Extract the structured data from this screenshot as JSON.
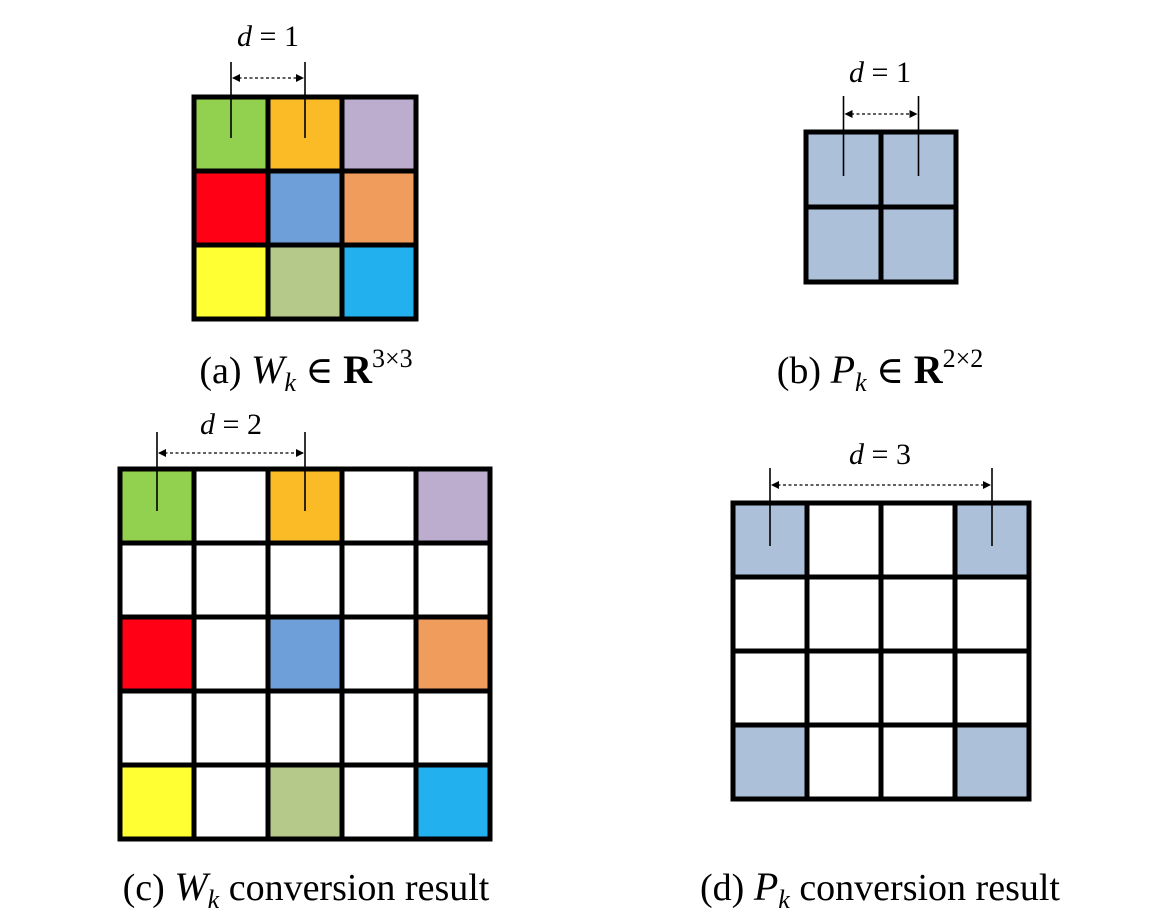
{
  "panels": [
    {
      "id": "a",
      "caption": {
        "prefix": "(a) ",
        "symbol": "W",
        "sub": "k",
        "relation": " ∈ ",
        "field": "R",
        "sup": "3×3",
        "suffix": ""
      },
      "spacing_label": {
        "var": "d",
        "eq": " = ",
        "value": "1"
      },
      "grid": {
        "rows": 3,
        "cols": 3
      },
      "cells": [
        {
          "r": 0,
          "c": 0,
          "color": "#92d050"
        },
        {
          "r": 0,
          "c": 1,
          "color": "#fbbb27"
        },
        {
          "r": 0,
          "c": 2,
          "color": "#bcaccd"
        },
        {
          "r": 1,
          "c": 0,
          "color": "#ff0015"
        },
        {
          "r": 1,
          "c": 1,
          "color": "#6f9fd8"
        },
        {
          "r": 1,
          "c": 2,
          "color": "#f09c5c"
        },
        {
          "r": 2,
          "c": 0,
          "color": "#ffff33"
        },
        {
          "r": 2,
          "c": 1,
          "color": "#b5c98b"
        },
        {
          "r": 2,
          "c": 2,
          "color": "#22b1ee"
        }
      ],
      "marker_cols": [
        0,
        1
      ]
    },
    {
      "id": "b",
      "caption": {
        "prefix": "(b) ",
        "symbol": "P",
        "sub": "k",
        "relation": " ∈ ",
        "field": "R",
        "sup": "2×2",
        "suffix": ""
      },
      "spacing_label": {
        "var": "d",
        "eq": " = ",
        "value": "1"
      },
      "grid": {
        "rows": 2,
        "cols": 2
      },
      "cells": [
        {
          "r": 0,
          "c": 0,
          "color": "#adc0da"
        },
        {
          "r": 0,
          "c": 1,
          "color": "#adc0da"
        },
        {
          "r": 1,
          "c": 0,
          "color": "#adc0da"
        },
        {
          "r": 1,
          "c": 1,
          "color": "#adc0da"
        }
      ],
      "marker_cols": [
        0,
        1
      ]
    },
    {
      "id": "c",
      "caption": {
        "prefix": "(c) ",
        "symbol": "W",
        "sub": "k",
        "relation": "",
        "field": "",
        "sup": "",
        "suffix": " conversion result"
      },
      "spacing_label": {
        "var": "d",
        "eq": " = ",
        "value": "2"
      },
      "grid": {
        "rows": 5,
        "cols": 5
      },
      "cells": [
        {
          "r": 0,
          "c": 0,
          "color": "#92d050"
        },
        {
          "r": 0,
          "c": 2,
          "color": "#fbbb27"
        },
        {
          "r": 0,
          "c": 4,
          "color": "#bcaccd"
        },
        {
          "r": 2,
          "c": 0,
          "color": "#ff0015"
        },
        {
          "r": 2,
          "c": 2,
          "color": "#6f9fd8"
        },
        {
          "r": 2,
          "c": 4,
          "color": "#f09c5c"
        },
        {
          "r": 4,
          "c": 0,
          "color": "#ffff33"
        },
        {
          "r": 4,
          "c": 2,
          "color": "#b5c98b"
        },
        {
          "r": 4,
          "c": 4,
          "color": "#22b1ee"
        }
      ],
      "marker_cols": [
        0,
        2
      ]
    },
    {
      "id": "d",
      "caption": {
        "prefix": "(d) ",
        "symbol": "P",
        "sub": "k",
        "relation": "",
        "field": "",
        "sup": "",
        "suffix": " conversion result"
      },
      "spacing_label": {
        "var": "d",
        "eq": " = ",
        "value": "3"
      },
      "grid": {
        "rows": 4,
        "cols": 4
      },
      "cells": [
        {
          "r": 0,
          "c": 0,
          "color": "#adc0da"
        },
        {
          "r": 0,
          "c": 3,
          "color": "#adc0da"
        },
        {
          "r": 3,
          "c": 0,
          "color": "#adc0da"
        },
        {
          "r": 3,
          "c": 3,
          "color": "#adc0da"
        }
      ],
      "marker_cols": [
        0,
        3
      ]
    }
  ]
}
